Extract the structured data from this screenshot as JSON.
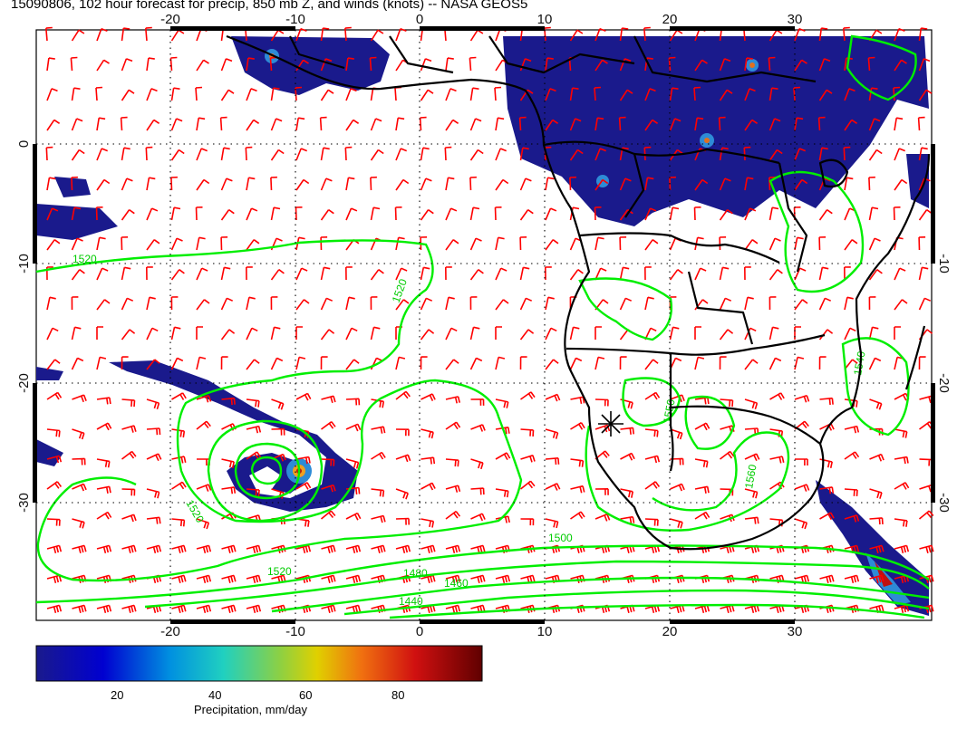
{
  "title": "15090806, 102 hour forecast for precip, 850 mb Z, and winds (knots) -- NASA GEOS5",
  "map": {
    "lon_range": [
      -31,
      41
    ],
    "lat_range": [
      -41,
      9
    ],
    "lon_ticks": [
      -20,
      -10,
      0,
      10,
      20,
      30
    ],
    "lat_ticks": [
      0,
      -10,
      -20,
      -30
    ],
    "gridlines": "dotted"
  },
  "colorbar": {
    "title": "Precipitation, mm/day",
    "ticks": [
      "20",
      "40",
      "60",
      "80"
    ],
    "range": [
      0,
      100
    ]
  },
  "contours": {
    "labels": [
      "1520",
      "1520",
      "1520",
      "1520",
      "1480",
      "1460",
      "1440",
      "1500",
      "1540",
      "1550",
      "1560"
    ]
  },
  "colors": {
    "precip_main": "#1a1a8c",
    "wind_barbs": "#ff0000",
    "height_contours": "#00ee00",
    "coastlines": "#000000"
  }
}
